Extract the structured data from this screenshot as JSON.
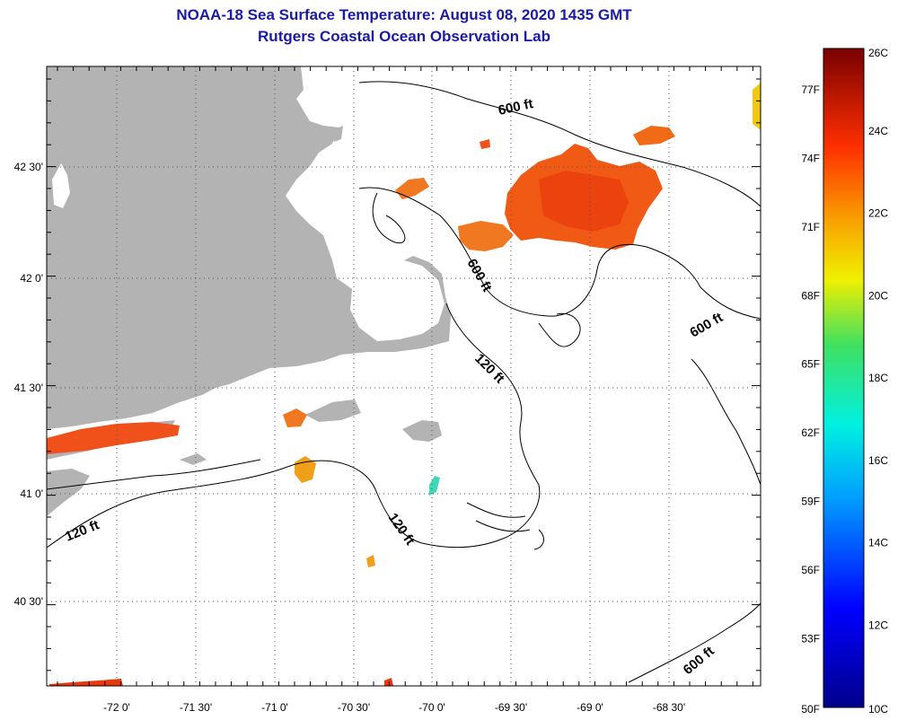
{
  "header": {
    "title": "NOAA-18 Sea Surface Temperature:  August 08, 2020 1435 GMT",
    "subtitle": "Rutgers Coastal Ocean Observation Lab"
  },
  "map": {
    "lon_ticks": [
      "-72 0'",
      "-71 30'",
      "-71 0'",
      "-70 30'",
      "-70 0'",
      "-69 30'",
      "-69 0'",
      "-68 30'"
    ],
    "lat_ticks": [
      "42 30'",
      "42 0'",
      "41 30'",
      "41 0'",
      "40 30'"
    ],
    "contour_labels": [
      "600 ft",
      "600 ft",
      "600 ft",
      "600 ft",
      "120 ft",
      "120 ft",
      "120 ft"
    ]
  },
  "colorbar": {
    "celsius": [
      "26C",
      "24C",
      "22C",
      "20C",
      "18C",
      "16C",
      "14C",
      "12C",
      "10C"
    ],
    "fahrenheit": [
      "77F",
      "74F",
      "71F",
      "68F",
      "65F",
      "62F",
      "59F",
      "56F",
      "53F",
      "50F"
    ],
    "range_c": [
      10,
      26
    ]
  },
  "colors": {
    "land": "#b3b3b3",
    "title": "#1a1aa6",
    "sst_warm": "#f05a14",
    "sst_hot": "#e8380c",
    "sst_yellow": "#f0c814",
    "sst_cyan": "#40d8b8"
  }
}
